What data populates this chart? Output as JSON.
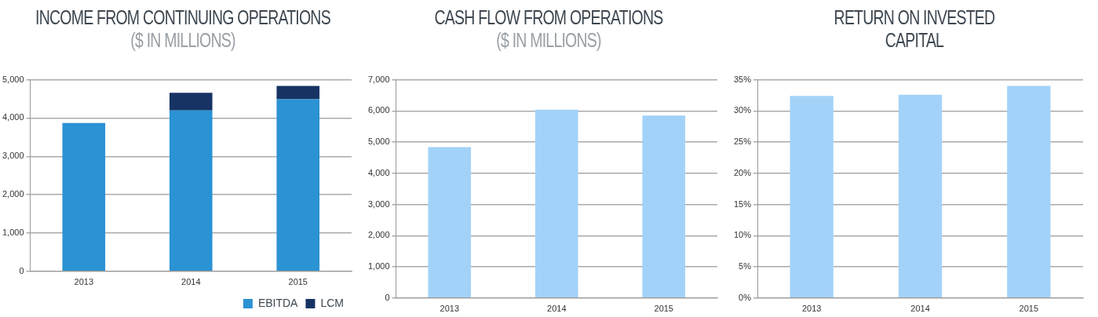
{
  "chart_data": [
    {
      "type": "bar",
      "title": "INCOME FROM CONTINUING OPERATIONS",
      "subtitle": "($ IN MILLIONS)",
      "categories": [
        "2013",
        "2014",
        "2015"
      ],
      "stacked": true,
      "series": [
        {
          "name": "EBITDA",
          "color": "#2b92d3",
          "values": [
            3870,
            4200,
            4490
          ]
        },
        {
          "name": "LCM",
          "color": "#163364",
          "values": [
            null,
            460,
            350
          ]
        }
      ],
      "ylim": [
        0,
        5000
      ],
      "yticks": [
        0,
        {
          "value": 1000,
          "label": "1,000"
        },
        {
          "value": 2000,
          "label": "2,000"
        },
        {
          "value": 3000,
          "label": "3,000"
        },
        {
          "value": 4000,
          "label": "4,000"
        },
        {
          "value": 5000,
          "label": "5,000"
        }
      ],
      "grid": "y",
      "legend": "bottom right"
    },
    {
      "type": "bar",
      "title": "CASH FLOW FROM OPERATIONS",
      "subtitle": "($ IN MILLIONS)",
      "categories": [
        "2013",
        "2014",
        "2015"
      ],
      "values": [
        4840,
        6040,
        5850
      ],
      "color": "#a3d2f8",
      "ylim": [
        0,
        7000
      ],
      "yticks": [
        0,
        {
          "value": 1000,
          "label": "1,000"
        },
        {
          "value": 2000,
          "label": "2,000"
        },
        {
          "value": 3000,
          "label": "3,000"
        },
        {
          "value": 4000,
          "label": "4,000"
        },
        {
          "value": 5000,
          "label": "5,000"
        },
        {
          "value": 6000,
          "label": "6,000"
        },
        {
          "value": 7000,
          "label": "7,000"
        }
      ],
      "grid": "y"
    },
    {
      "type": "bar",
      "title": "RETURN ON INVESTED CAPITAL",
      "categories": [
        "2013",
        "2014",
        "2015"
      ],
      "values": [
        32.4,
        32.6,
        34.0
      ],
      "color": "#a3d2f8",
      "ylim": [
        0,
        35
      ],
      "yticks": [
        {
          "value": 0,
          "label": "0%"
        },
        {
          "value": 5,
          "label": "5%"
        },
        {
          "value": 10,
          "label": "10%"
        },
        {
          "value": 15,
          "label": "15%"
        },
        {
          "value": 20,
          "label": "20%"
        },
        {
          "value": 25,
          "label": "25%"
        },
        {
          "value": 30,
          "label": "30%"
        },
        {
          "value": 35,
          "label": "35%"
        }
      ],
      "grid": "y"
    }
  ]
}
